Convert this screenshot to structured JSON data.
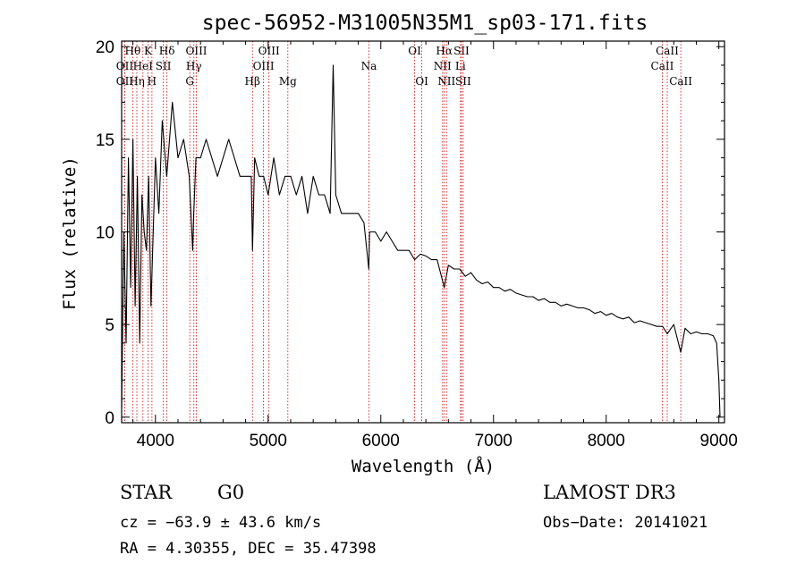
{
  "chart_data": {
    "type": "line",
    "title": "spec-56952-M31005N35M1_sp03-171.fits",
    "xlabel": "Wavelength (Å)",
    "ylabel": "Flux (relative)",
    "xlim": [
      3700,
      9050
    ],
    "ylim": [
      -0.3,
      20.3
    ],
    "xticks": [
      4000,
      5000,
      6000,
      7000,
      8000,
      9000
    ],
    "yticks": [
      0,
      5,
      10,
      15,
      20
    ],
    "grid": false,
    "series": [
      {
        "name": "spectrum",
        "x": [
          3700,
          3720,
          3740,
          3760,
          3780,
          3800,
          3820,
          3840,
          3860,
          3880,
          3900,
          3920,
          3940,
          3960,
          3980,
          4000,
          4030,
          4060,
          4100,
          4150,
          4200,
          4250,
          4300,
          4330,
          4340,
          4360,
          4400,
          4450,
          4500,
          4550,
          4600,
          4650,
          4700,
          4750,
          4800,
          4850,
          4861,
          4880,
          4920,
          4960,
          5000,
          5050,
          5100,
          5150,
          5200,
          5250,
          5300,
          5350,
          5400,
          5450,
          5500,
          5550,
          5577,
          5600,
          5650,
          5700,
          5750,
          5800,
          5850,
          5893,
          5900,
          5950,
          6000,
          6050,
          6100,
          6150,
          6200,
          6250,
          6300,
          6350,
          6400,
          6450,
          6500,
          6563,
          6600,
          6650,
          6700,
          6750,
          6800,
          6850,
          6900,
          6950,
          7000,
          7050,
          7100,
          7150,
          7200,
          7250,
          7300,
          7350,
          7400,
          7450,
          7500,
          7550,
          7600,
          7650,
          7700,
          7750,
          7800,
          7850,
          7900,
          7950,
          8000,
          8050,
          8100,
          8150,
          8200,
          8250,
          8300,
          8350,
          8400,
          8450,
          8500,
          8542,
          8600,
          8662,
          8700,
          8750,
          8800,
          8850,
          8900,
          8950,
          8980,
          9000,
          9010
        ],
        "y": [
          0.5,
          10,
          4,
          14,
          7,
          15,
          6,
          13,
          4,
          12,
          10,
          9,
          13,
          6,
          10,
          14,
          11,
          16,
          13,
          17,
          14,
          15,
          13,
          9,
          11,
          14,
          14,
          15,
          14,
          13,
          14,
          15,
          14,
          13,
          13,
          13,
          9,
          14,
          13,
          13,
          12,
          14,
          12,
          13,
          13,
          12,
          13,
          11,
          13,
          12,
          12,
          11,
          19,
          12,
          11,
          11,
          11,
          11,
          10.5,
          8,
          10,
          10,
          9.5,
          10,
          9.5,
          9,
          9,
          9,
          8.5,
          8.8,
          8.7,
          8.5,
          8.5,
          7,
          8.2,
          8,
          8,
          7.6,
          7.8,
          7.4,
          7.2,
          7.3,
          7,
          7,
          6.8,
          6.9,
          6.7,
          6.6,
          6.5,
          6.5,
          6.3,
          6.4,
          6.2,
          6.2,
          6,
          6.1,
          6,
          5.9,
          5.9,
          5.8,
          5.6,
          5.7,
          5.5,
          5.6,
          5.4,
          5.3,
          5.4,
          5.1,
          5.2,
          5.1,
          5,
          4.9,
          4.9,
          4.5,
          5,
          3.5,
          4.8,
          4.5,
          4.6,
          4.5,
          4.5,
          4.4,
          4,
          2,
          0
        ]
      }
    ],
    "lines_dotted": [
      {
        "label": "OII",
        "x": 3727,
        "row": 2
      },
      {
        "label": "OII",
        "x": 3727,
        "row": 1
      },
      {
        "label": "Hθ",
        "x": 3798,
        "row": 0
      },
      {
        "label": "Hη",
        "x": 3835,
        "row": 2
      },
      {
        "label": "HeI",
        "x": 3889,
        "row": 1
      },
      {
        "label": "K",
        "x": 3934,
        "row": 0
      },
      {
        "label": "H",
        "x": 3969,
        "row": 2
      },
      {
        "label": "SII",
        "x": 4070,
        "row": 1
      },
      {
        "label": "Hδ",
        "x": 4102,
        "row": 0
      },
      {
        "label": "G",
        "x": 4305,
        "row": 2
      },
      {
        "label": "Hγ",
        "x": 4341,
        "row": 1
      },
      {
        "label": "OIII",
        "x": 4363,
        "row": 0
      },
      {
        "label": "Hβ",
        "x": 4861,
        "row": 2
      },
      {
        "label": "OIII",
        "x": 4959,
        "row": 1
      },
      {
        "label": "OIII",
        "x": 5007,
        "row": 0
      },
      {
        "label": "Mg",
        "x": 5175,
        "row": 2
      },
      {
        "label": "Na",
        "x": 5894,
        "row": 1
      },
      {
        "label": "OI",
        "x": 6300,
        "row": 0
      },
      {
        "label": "OI",
        "x": 6364,
        "row": 2
      },
      {
        "label": "NII",
        "x": 6548,
        "row": 1
      },
      {
        "label": "Hα",
        "x": 6563,
        "row": 0
      },
      {
        "label": "NII",
        "x": 6583,
        "row": 2
      },
      {
        "label": "Li",
        "x": 6707,
        "row": 1
      },
      {
        "label": "SII",
        "x": 6716,
        "row": 0
      },
      {
        "label": "SII",
        "x": 6731,
        "row": 2
      },
      {
        "label": "CaII",
        "x": 8498,
        "row": 1
      },
      {
        "label": "CaII",
        "x": 8542,
        "row": 0
      },
      {
        "label": "CaII",
        "x": 8662,
        "row": 2
      }
    ]
  },
  "info": {
    "class": "STAR",
    "subclass": "G0",
    "survey": "LAMOST DR3",
    "cz": "cz = −63.9 ± 43.6 km/s",
    "obs_date": "Obs−Date: 20141021",
    "radec": "RA =   4.30355, DEC =  35.47398"
  }
}
